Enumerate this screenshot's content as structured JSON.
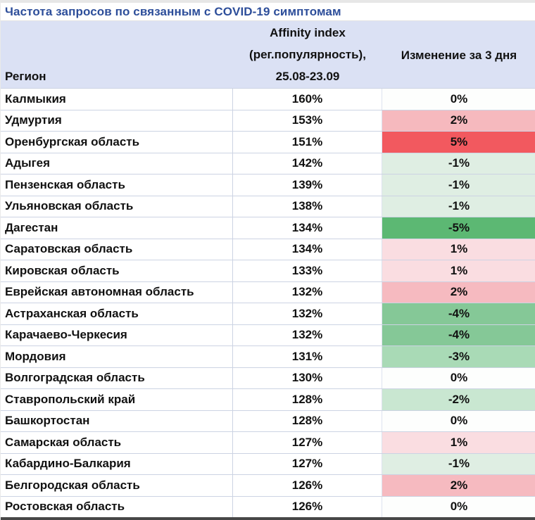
{
  "title": "Частота запросов по связанным с COVID-19 симптомам",
  "table": {
    "header": {
      "region": "Регион",
      "affinity_line1": "Affinity index",
      "affinity_line2": "(рег.популярность),",
      "affinity_line3": "25.08-23.09",
      "change": "Изменение за 3 дня"
    },
    "rows": [
      {
        "region": "Калмыкия",
        "affinity": "160%",
        "change": "0%",
        "change_bg": "#fdfefd"
      },
      {
        "region": "Удмуртия",
        "affinity": "153%",
        "change": "2%",
        "change_bg": "#f6b9be"
      },
      {
        "region": "Оренбургская область",
        "affinity": "151%",
        "change": "5%",
        "change_bg": "#f2595f"
      },
      {
        "region": "Адыгея",
        "affinity": "142%",
        "change": "-1%",
        "change_bg": "#dfeee3"
      },
      {
        "region": "Пензенская область",
        "affinity": "139%",
        "change": "-1%",
        "change_bg": "#dfeee3"
      },
      {
        "region": "Ульяновская область",
        "affinity": "138%",
        "change": "-1%",
        "change_bg": "#dfeee3"
      },
      {
        "region": "Дагестан",
        "affinity": "134%",
        "change": "-5%",
        "change_bg": "#5cb873"
      },
      {
        "region": "Саратовская область",
        "affinity": "134%",
        "change": "1%",
        "change_bg": "#fadde1"
      },
      {
        "region": "Кировская область",
        "affinity": "133%",
        "change": "1%",
        "change_bg": "#fadde1"
      },
      {
        "region": "Еврейская автономная область",
        "affinity": "132%",
        "change": "2%",
        "change_bg": "#f6bac0"
      },
      {
        "region": "Астраханская область",
        "affinity": "132%",
        "change": "-4%",
        "change_bg": "#85c897"
      },
      {
        "region": "Карачаево-Черкесия",
        "affinity": "132%",
        "change": "-4%",
        "change_bg": "#85c897"
      },
      {
        "region": "Мордовия",
        "affinity": "131%",
        "change": "-3%",
        "change_bg": "#a9dab6"
      },
      {
        "region": "Волгоградская область",
        "affinity": "130%",
        "change": "0%",
        "change_bg": "#fdfefd"
      },
      {
        "region": "Ставропольский край",
        "affinity": "128%",
        "change": "-2%",
        "change_bg": "#c9e7d1"
      },
      {
        "region": "Башкортостан",
        "affinity": "128%",
        "change": "0%",
        "change_bg": "#fdfefd"
      },
      {
        "region": "Самарская область",
        "affinity": "127%",
        "change": "1%",
        "change_bg": "#fadde1"
      },
      {
        "region": "Кабардино-Балкария",
        "affinity": "127%",
        "change": "-1%",
        "change_bg": "#dfeee3"
      },
      {
        "region": "Белгородская область",
        "affinity": "126%",
        "change": "2%",
        "change_bg": "#f6bac0"
      },
      {
        "region": "Ростовская область",
        "affinity": "126%",
        "change": "0%",
        "change_bg": "#fdfefd"
      }
    ]
  },
  "colors": {
    "title_text": "#2d4e9a",
    "header_bg": "#dbe1f4",
    "row_border": "#ccd3e3",
    "increase_strong": "#f2595f",
    "increase_medium": "#f6bac0",
    "increase_light": "#fadde1",
    "neutral": "#ffffff",
    "decrease_light": "#dfeee3",
    "decrease_medium_light": "#c9e7d1",
    "decrease_medium": "#a9dab6",
    "decrease_strong": "#85c897",
    "decrease_max": "#5cb873"
  },
  "chart_data": {
    "type": "table",
    "title": "Частота запросов по связанным с COVID-19 симптомам",
    "columns": [
      "Регион",
      "Affinity index (рег.популярность), 25.08-23.09",
      "Изменение за 3 дня"
    ],
    "rows": [
      [
        "Калмыкия",
        160,
        0
      ],
      [
        "Удмуртия",
        153,
        2
      ],
      [
        "Оренбургская область",
        151,
        5
      ],
      [
        "Адыгея",
        142,
        -1
      ],
      [
        "Пензенская область",
        139,
        -1
      ],
      [
        "Ульяновская область",
        138,
        -1
      ],
      [
        "Дагестан",
        134,
        -5
      ],
      [
        "Саратовская область",
        134,
        1
      ],
      [
        "Кировская область",
        133,
        1
      ],
      [
        "Еврейская автономная область",
        132,
        2
      ],
      [
        "Астраханская область",
        132,
        -4
      ],
      [
        "Карачаево-Черкесия",
        132,
        -4
      ],
      [
        "Мордовия",
        131,
        -3
      ],
      [
        "Волгоградская область",
        130,
        0
      ],
      [
        "Ставропольский край",
        128,
        -2
      ],
      [
        "Башкортостан",
        128,
        0
      ],
      [
        "Самарская область",
        127,
        1
      ],
      [
        "Кабардино-Балкария",
        127,
        -1
      ],
      [
        "Белгородская область",
        126,
        2
      ],
      [
        "Ростовская область",
        126,
        0
      ]
    ],
    "units": {
      "affinity": "percent",
      "change": "percent"
    },
    "notes": "Change column cells are shaded red for increases and green for decreases; intensity scales with magnitude."
  }
}
